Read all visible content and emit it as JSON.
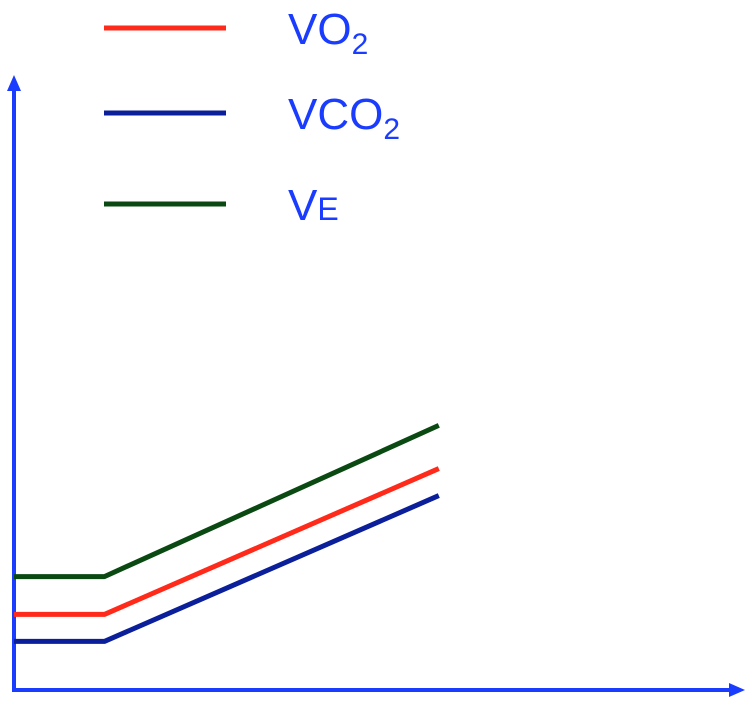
{
  "chart_data": {
    "type": "line",
    "title": "",
    "xlabel": "",
    "ylabel": "",
    "grid": false,
    "legend_position": "top-left",
    "axis_color": "#1a3cff",
    "legend_text_color": "#1a3cff",
    "x": [
      0,
      1,
      4.7
    ],
    "xlim": [
      0,
      8
    ],
    "ylim": [
      0,
      10
    ],
    "series": [
      {
        "name": "VO2",
        "name_main": "VO",
        "name_sub": "2",
        "color": "#ff2a1a",
        "values": [
          1.4,
          1.4,
          4.1
        ]
      },
      {
        "name": "VCO2",
        "name_main": "VCO",
        "name_sub": "2",
        "color": "#0a1f99",
        "values": [
          0.9,
          0.9,
          3.6
        ]
      },
      {
        "name": "VE",
        "name_main": "V",
        "name_sub": "E",
        "color": "#0a4a12",
        "values": [
          2.1,
          2.1,
          4.9
        ]
      }
    ]
  }
}
